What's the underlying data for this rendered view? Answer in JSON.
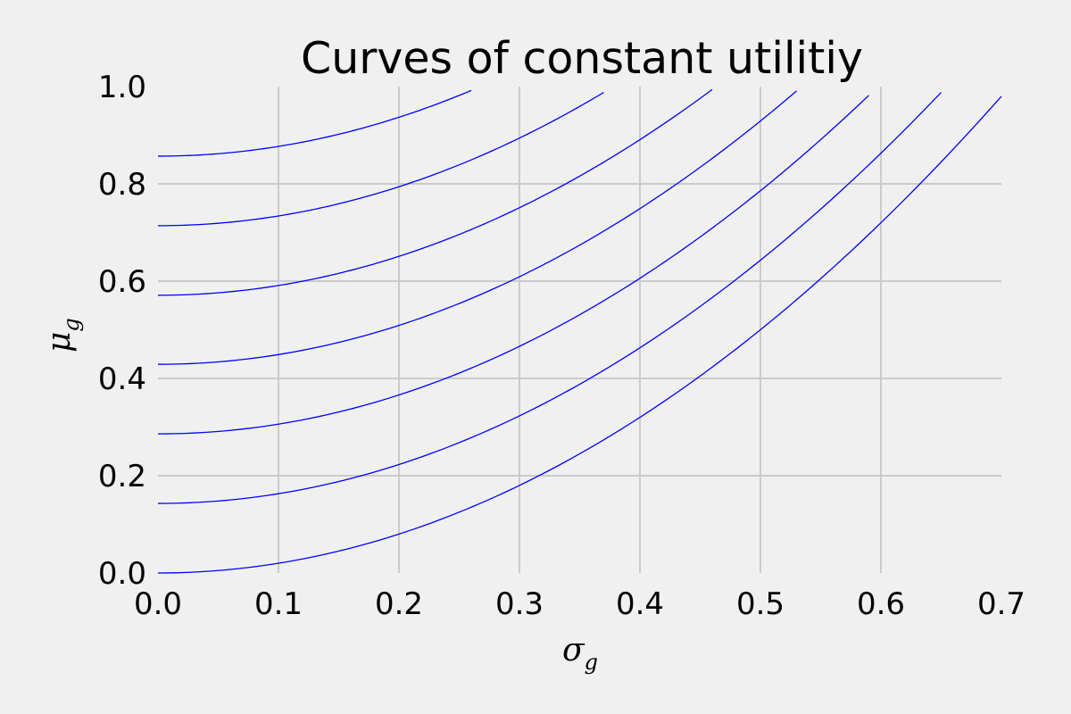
{
  "chart_data": {
    "type": "line",
    "title": "Curves of constant utilitiy",
    "xlabel": "σ",
    "xlabel_subscript": "g",
    "ylabel": "μ",
    "ylabel_subscript": "g",
    "xlim": [
      0.0,
      0.7
    ],
    "ylim": [
      0.0,
      1.0
    ],
    "xticks": [
      "0.0",
      "0.1",
      "0.2",
      "0.3",
      "0.4",
      "0.5",
      "0.6",
      "0.7"
    ],
    "yticks": [
      "0.0",
      "0.2",
      "0.4",
      "0.6",
      "0.8",
      "1.0"
    ],
    "grid": true,
    "line_color": "#0000ff",
    "background_color": "#f0f0f0",
    "grid_color": "#cbcbcb",
    "series": [
      {
        "x": [
          0,
          0.1,
          0.2,
          0.3,
          0.4,
          0.5,
          0.6,
          0.7
        ],
        "y": [
          0.0,
          0.02,
          0.08,
          0.18,
          0.32,
          0.5,
          0.72,
          0.98
        ]
      },
      {
        "x": [
          0,
          0.1,
          0.2,
          0.3,
          0.4,
          0.5,
          0.6,
          0.65
        ],
        "y": [
          0.143,
          0.163,
          0.223,
          0.323,
          0.463,
          0.643,
          0.863,
          0.988
        ]
      },
      {
        "x": [
          0,
          0.1,
          0.2,
          0.3,
          0.4,
          0.5,
          0.59
        ],
        "y": [
          0.286,
          0.306,
          0.366,
          0.466,
          0.606,
          0.786,
          0.982
        ]
      },
      {
        "x": [
          0,
          0.1,
          0.2,
          0.3,
          0.4,
          0.5,
          0.53
        ],
        "y": [
          0.429,
          0.449,
          0.509,
          0.609,
          0.749,
          0.929,
          0.991
        ]
      },
      {
        "x": [
          0,
          0.1,
          0.2,
          0.3,
          0.4,
          0.46
        ],
        "y": [
          0.571,
          0.591,
          0.651,
          0.751,
          0.891,
          0.994
        ]
      },
      {
        "x": [
          0,
          0.1,
          0.2,
          0.3,
          0.37
        ],
        "y": [
          0.714,
          0.734,
          0.794,
          0.894,
          0.988
        ]
      },
      {
        "x": [
          0,
          0.1,
          0.2,
          0.26
        ],
        "y": [
          0.857,
          0.877,
          0.937,
          0.992
        ]
      }
    ]
  }
}
